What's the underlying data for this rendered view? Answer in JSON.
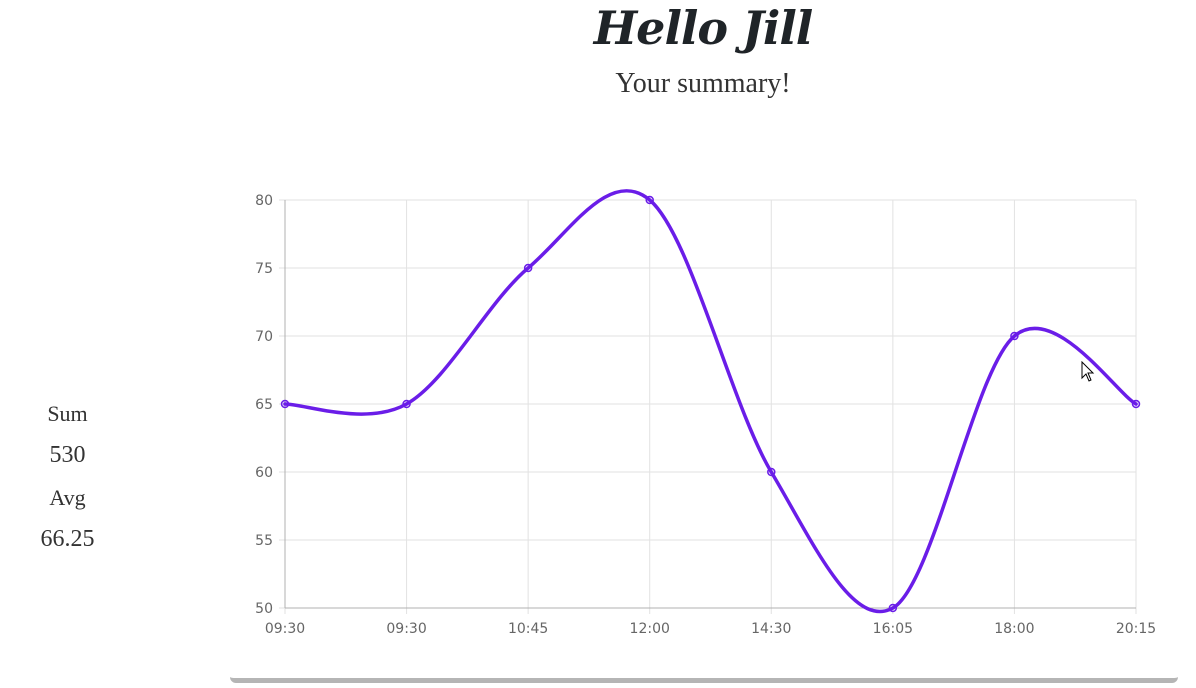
{
  "header": {
    "greeting": "Hello Jill",
    "subtitle": "Your summary!"
  },
  "stats": {
    "sum_label": "Sum",
    "sum_value": "530",
    "avg_label": "Avg",
    "avg_value": "66.25"
  },
  "chart_data": {
    "type": "line",
    "x": [
      "09:30",
      "09:30",
      "10:45",
      "12:00",
      "14:30",
      "16:05",
      "18:00",
      "20:15"
    ],
    "series": [
      {
        "values": [
          65,
          65,
          75,
          80,
          60,
          50,
          70,
          65
        ]
      }
    ],
    "ylim": [
      50,
      80
    ],
    "yticks": [
      50,
      55,
      60,
      65,
      70,
      75,
      80
    ],
    "grid": true,
    "smooth": true,
    "line_color": "#6a1de8"
  }
}
